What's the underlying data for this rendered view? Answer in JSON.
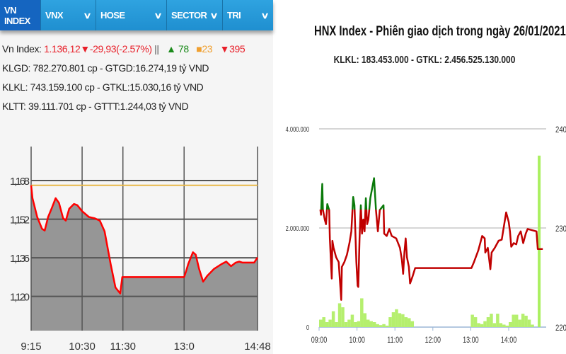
{
  "tabs": [
    {
      "label": "VN INDEX",
      "active": true,
      "dropdown": false
    },
    {
      "label": "VNX",
      "dropdown": true
    },
    {
      "label": "HOSE",
      "dropdown": true
    },
    {
      "label": "SECTOR",
      "dropdown": true
    },
    {
      "label": "TRI",
      "dropdown": true
    }
  ],
  "vnindex_stats": {
    "label": "Vn Index:",
    "value": "1.136,12",
    "change": "▼-29,93(-2.57%)",
    "separator": "||",
    "advances": "▲ 78",
    "unchanged": "■23",
    "declines": "▼395",
    "line1": "KLGD: 782.270.801 cp - GTGD:16.274,19 tỷ VND",
    "line2": "KLKL: 743.159.100 cp - GTKL:15.030,16 tỷ VND",
    "line3": "KLTT: 39.111.701 cp - GTTT:1.244,03 tỷ VND"
  },
  "hnx_header": {
    "title": "HNX Index - Phiên giao dịch trong ngày 26/01/2021",
    "subtitle": "KLKL: 183.453.000 - GTKL: 2.456.525.130.000"
  },
  "colors": {
    "tab_bg": "#1f8fd0",
    "tab_active": "#1565c0",
    "vn_line": "#ff0000",
    "vn_fill": "#969696",
    "vn_ref": "#e8b84a",
    "hnx_up": "#0a7a0a",
    "hnx_down": "#c00000",
    "hnx_volume": "#b5ef6e"
  },
  "chart_data": [
    {
      "type": "area",
      "name_ref": "VN Index intraday",
      "x_ticks": [
        "9:15",
        "10:30",
        "11:30",
        "13:0",
        "14:48"
      ],
      "y_ticks": [
        "1,168",
        "1,152",
        "1,136",
        "1,120"
      ],
      "y_tick_values": [
        1168,
        1152,
        1136,
        1120
      ],
      "ylim": [
        1105.8,
        1182.1
      ],
      "xlim": [
        "9:15",
        "14:48"
      ],
      "grid": true,
      "reference": 1166.05,
      "points": [
        [
          "9:15",
          1166.05
        ],
        [
          "9:17",
          1160.7
        ],
        [
          "9:24",
          1152.9
        ],
        [
          "9:31",
          1148.0
        ],
        [
          "9:35",
          1147.3
        ],
        [
          "9:40",
          1152.9
        ],
        [
          "9:45",
          1156.3
        ],
        [
          "9:51",
          1160.7
        ],
        [
          "9:56",
          1158.7
        ],
        [
          "10:02",
          1152.4
        ],
        [
          "10:06",
          1151.4
        ],
        [
          "10:11",
          1156.3
        ],
        [
          "10:18",
          1158.3
        ],
        [
          "10:23",
          1157.8
        ],
        [
          "10:30",
          1155.3
        ],
        [
          "10:40",
          1152.9
        ],
        [
          "10:48",
          1152.4
        ],
        [
          "10:56",
          1151.4
        ],
        [
          "11:03",
          1147.0
        ],
        [
          "11:12",
          1133.4
        ],
        [
          "11:19",
          1123.7
        ],
        [
          "11:26",
          1121.2
        ],
        [
          "11:29",
          1128.0
        ],
        [
          "13:00",
          1128.0
        ],
        [
          "13:03",
          1130.5
        ],
        [
          "13:06",
          1133.4
        ],
        [
          "13:13",
          1138.3
        ],
        [
          "13:17",
          1137.3
        ],
        [
          "13:22",
          1131.4
        ],
        [
          "13:28",
          1126.1
        ],
        [
          "13:34",
          1128.5
        ],
        [
          "13:44",
          1131.4
        ],
        [
          "13:55",
          1133.4
        ],
        [
          "14:02",
          1134.4
        ],
        [
          "14:09",
          1132.5
        ],
        [
          "14:16",
          1134.0
        ],
        [
          "14:21",
          1134.4
        ],
        [
          "14:26",
          1134.0
        ],
        [
          "14:43",
          1134.0
        ],
        [
          "14:48",
          1136.1
        ]
      ]
    },
    {
      "type": "line",
      "title": "HNX Index - Phiên giao dịch trong ngày 26/01/2021",
      "x_ticks": [
        "09:00",
        "10:00",
        "11:00",
        "12:00",
        "13:00",
        "14:00"
      ],
      "xlim": [
        "09:00",
        "14:59"
      ],
      "y_left_ticks": [
        "4.000.000",
        "2.000.000",
        "0"
      ],
      "y_left_values": [
        4000000,
        2000000,
        0
      ],
      "y_right_ticks": [
        "240",
        "230",
        "220"
      ],
      "y_right_values": [
        240,
        230,
        220
      ],
      "ylim_left": [
        0,
        4000000
      ],
      "ylim_right": [
        220,
        240
      ],
      "grid": true,
      "reference": 231.86,
      "index": [
        [
          "09:02",
          231.86
        ],
        [
          "09:03",
          231.33
        ],
        [
          "09:05",
          234.44
        ],
        [
          "09:06",
          231.86
        ],
        [
          "09:09",
          230.86
        ],
        [
          "09:11",
          230.38
        ],
        [
          "09:13",
          232.41
        ],
        [
          "09:16",
          231.81
        ],
        [
          "09:17",
          228.95
        ],
        [
          "09:20",
          224.89
        ],
        [
          "09:21",
          228.71
        ],
        [
          "09:23",
          227.99
        ],
        [
          "09:27",
          227.04
        ],
        [
          "09:31",
          226.56
        ],
        [
          "09:33",
          224.65
        ],
        [
          "09:35",
          222.74
        ],
        [
          "09:36",
          226.08
        ],
        [
          "09:40",
          226.56
        ],
        [
          "09:44",
          227.28
        ],
        [
          "09:48",
          228.47
        ],
        [
          "09:51",
          229.66
        ],
        [
          "09:54",
          233.13
        ],
        [
          "09:56",
          232.29
        ],
        [
          "09:59",
          226.56
        ],
        [
          "10:01",
          224.17
        ],
        [
          "10:02",
          224.05
        ],
        [
          "10:04",
          228.95
        ],
        [
          "10:06",
          232.29
        ],
        [
          "10:08",
          229.43
        ],
        [
          "10:10",
          230.86
        ],
        [
          "10:12",
          229.66
        ],
        [
          "10:14",
          233.01
        ],
        [
          "10:16",
          230.38
        ],
        [
          "10:18",
          230.86
        ],
        [
          "10:21",
          233.01
        ],
        [
          "10:27",
          235.03
        ],
        [
          "10:30",
          231.81
        ],
        [
          "10:33",
          229.66
        ],
        [
          "10:36",
          231.81
        ],
        [
          "10:42",
          232.29
        ],
        [
          "10:43",
          229.43
        ],
        [
          "10:47",
          229.19
        ],
        [
          "10:51",
          229.9
        ],
        [
          "10:55",
          229.19
        ],
        [
          "11:02",
          228.95
        ],
        [
          "11:08",
          227.99
        ],
        [
          "11:11",
          226.8
        ],
        [
          "11:13",
          225.37
        ],
        [
          "11:15",
          227.52
        ],
        [
          "11:17",
          228.95
        ],
        [
          "11:19",
          227.04
        ],
        [
          "11:22",
          226.08
        ],
        [
          "11:24",
          224.41
        ],
        [
          "11:28",
          225.13
        ],
        [
          "11:32",
          225.96
        ],
        [
          "13:01",
          225.96
        ],
        [
          "13:05",
          226.56
        ],
        [
          "13:12",
          227.75
        ],
        [
          "13:18",
          229.19
        ],
        [
          "13:22",
          228.95
        ],
        [
          "13:23",
          227.52
        ],
        [
          "13:27",
          227.99
        ],
        [
          "13:31",
          225.84
        ],
        [
          "13:33",
          227.52
        ],
        [
          "13:38",
          227.99
        ],
        [
          "13:44",
          228.71
        ],
        [
          "13:49",
          228.83
        ],
        [
          "13:53",
          230.38
        ],
        [
          "13:56",
          231.57
        ],
        [
          "14:00",
          230.62
        ],
        [
          "14:02",
          229.66
        ],
        [
          "14:04",
          228.11
        ],
        [
          "14:08",
          228.47
        ],
        [
          "14:12",
          228.35
        ],
        [
          "14:15",
          229.19
        ],
        [
          "14:19",
          229.66
        ],
        [
          "14:23",
          228.47
        ],
        [
          "14:27",
          229.43
        ],
        [
          "14:30",
          229.9
        ],
        [
          "14:44",
          229.66
        ],
        [
          "14:46",
          227.87
        ],
        [
          "14:54",
          227.87
        ]
      ],
      "volume": [
        [
          "09:00",
          150000
        ],
        [
          "09:05",
          200000
        ],
        [
          "09:10",
          100000
        ],
        [
          "09:15",
          150000
        ],
        [
          "09:20",
          320000
        ],
        [
          "09:25",
          100000
        ],
        [
          "09:30",
          480000
        ],
        [
          "09:35",
          400000
        ],
        [
          "09:40",
          100000
        ],
        [
          "09:45",
          150000
        ],
        [
          "09:50",
          250000
        ],
        [
          "09:55",
          100000
        ],
        [
          "10:00",
          120000
        ],
        [
          "10:05",
          580000
        ],
        [
          "10:10",
          280000
        ],
        [
          "10:15",
          150000
        ],
        [
          "10:20",
          120000
        ],
        [
          "10:25",
          100000
        ],
        [
          "10:30",
          60000
        ],
        [
          "10:35",
          40000
        ],
        [
          "10:40",
          60000
        ],
        [
          "10:45",
          30000
        ],
        [
          "10:50",
          200000
        ],
        [
          "10:55",
          300000
        ],
        [
          "11:00",
          360000
        ],
        [
          "11:05",
          280000
        ],
        [
          "11:10",
          260000
        ],
        [
          "11:15",
          200000
        ],
        [
          "11:20",
          180000
        ],
        [
          "11:25",
          120000
        ],
        [
          "13:00",
          250000
        ],
        [
          "13:05",
          200000
        ],
        [
          "13:10",
          80000
        ],
        [
          "13:15",
          60000
        ],
        [
          "13:20",
          120000
        ],
        [
          "13:25",
          200000
        ],
        [
          "13:30",
          270000
        ],
        [
          "13:35",
          80000
        ],
        [
          "13:40",
          270000
        ],
        [
          "13:45",
          80000
        ],
        [
          "13:50",
          50000
        ],
        [
          "13:55",
          30000
        ],
        [
          "14:00",
          100000
        ],
        [
          "14:05",
          250000
        ],
        [
          "14:10",
          250000
        ],
        [
          "14:15",
          150000
        ],
        [
          "14:20",
          270000
        ],
        [
          "14:25",
          230000
        ],
        [
          "14:30",
          150000
        ],
        [
          "14:35",
          50000
        ],
        [
          "14:46",
          3460000
        ]
      ]
    }
  ]
}
